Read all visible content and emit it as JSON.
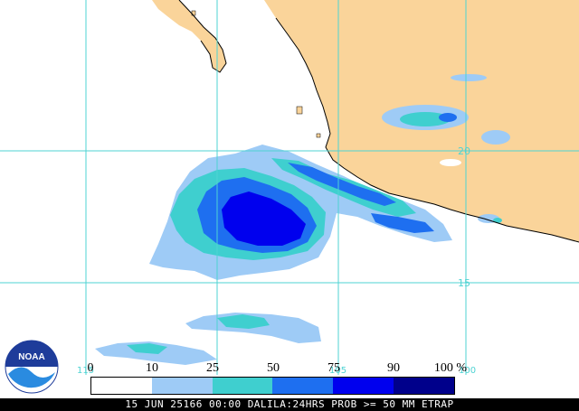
{
  "map": {
    "latitude_labels": [
      {
        "value": "20"
      },
      {
        "value": "15"
      }
    ],
    "longitude_labels": [
      {
        "value": "115"
      },
      {
        "value": "105"
      },
      {
        "value": "100"
      }
    ]
  },
  "legend": {
    "ticks": [
      "0",
      "10",
      "25",
      "50",
      "75",
      "90",
      "100 %"
    ],
    "colors": [
      "#ffffff",
      "#9ecbf6",
      "#3fcfcf",
      "#1e6ff0",
      "#0000ee",
      "#00008b"
    ]
  },
  "colors": {
    "land": "#fad49a",
    "ocean": "#ffffff",
    "grid": "#4fd3d3",
    "coast": "#000000"
  },
  "logo": {
    "text": "NOAA"
  },
  "footer": {
    "text": "15 JUN 25166 00:00 DALILA:24HRS PROB >= 50 MM ETRAP"
  }
}
